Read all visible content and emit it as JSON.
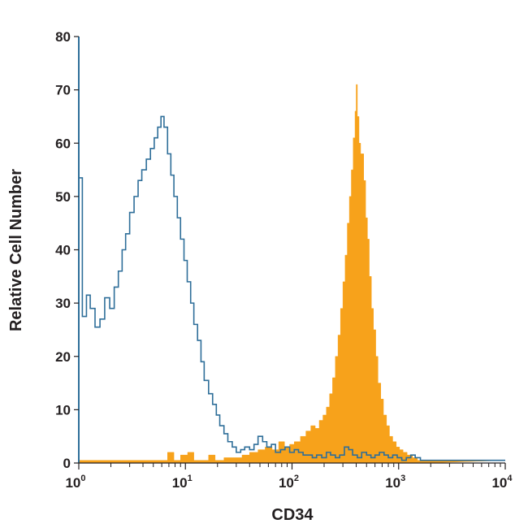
{
  "chart_data": {
    "type": "area",
    "title": "",
    "xlabel": "CD34",
    "ylabel": "Relative Cell Number",
    "xscale": "log",
    "xlim": [
      1,
      10000
    ],
    "ylim": [
      0,
      80
    ],
    "grid": false,
    "xticks": [
      {
        "value": 1,
        "base": "10",
        "exp": "0"
      },
      {
        "value": 10,
        "base": "10",
        "exp": "1"
      },
      {
        "value": 100,
        "base": "10",
        "exp": "2"
      },
      {
        "value": 1000,
        "base": "10",
        "exp": "3"
      },
      {
        "value": 10000,
        "base": "10",
        "exp": "4"
      }
    ],
    "yticks": [
      0,
      10,
      20,
      30,
      40,
      50,
      60,
      70,
      80
    ],
    "colors": {
      "isotype": "#2e6e99",
      "stained": "#f7a21b",
      "axis": "#231f20"
    },
    "series": [
      {
        "style": "step-outline",
        "color": "#2e6e99",
        "x": [
          1,
          1.08,
          1.18,
          1.28,
          1.42,
          1.58,
          1.75,
          1.95,
          2.15,
          2.35,
          2.55,
          2.75,
          3.0,
          3.3,
          3.6,
          3.9,
          4.3,
          4.7,
          5.1,
          5.5,
          5.9,
          6.3,
          6.8,
          7.3,
          7.8,
          8.4,
          9.0,
          9.7,
          10.4,
          11.2,
          12.0,
          13.0,
          14.0,
          15.0,
          16.5,
          18.0,
          19.5,
          21.0,
          23.0,
          25.0,
          27.5,
          30.0,
          33.0,
          36.0,
          40.0,
          44.0,
          48.0,
          53.0,
          58.0,
          64.0,
          70.0,
          78.0,
          86.0,
          95.0,
          105,
          115,
          127,
          140,
          155,
          170,
          190,
          210,
          230,
          255,
          280,
          310,
          340,
          370,
          410,
          450,
          500,
          550,
          600,
          660,
          730,
          800,
          880,
          970,
          1070,
          1180,
          1300,
          1430,
          1600,
          2000,
          3000,
          5000,
          10000
        ],
        "y": [
          53.5,
          27.5,
          31.5,
          29,
          25.5,
          27,
          31,
          29,
          33,
          36,
          40,
          43,
          47,
          50,
          53,
          55,
          57,
          59,
          61,
          63,
          65,
          63,
          58,
          54,
          50,
          46,
          42,
          38,
          34,
          30,
          26,
          23,
          19,
          15.5,
          13,
          11,
          9,
          7,
          5.5,
          4,
          3,
          2,
          2.5,
          3,
          2.5,
          3.5,
          5,
          4,
          3,
          3.5,
          2,
          2.5,
          3,
          2,
          2.5,
          2,
          1.5,
          1.5,
          1,
          1.5,
          1,
          2,
          1.5,
          1,
          1.5,
          3,
          2.5,
          1.5,
          1,
          2,
          1.5,
          1,
          1.5,
          2,
          1.5,
          1,
          1.5,
          1,
          0.5,
          1,
          1.5,
          1,
          0.5,
          0.5,
          0.5,
          0.5,
          0.5
        ]
      },
      {
        "style": "filled",
        "color": "#f7a21b",
        "x": [
          1.0,
          1.5,
          2.5,
          4.0,
          6.0,
          6.8,
          7.8,
          9.0,
          10.5,
          12.0,
          14.0,
          16.5,
          19.0,
          23.0,
          28.0,
          34.0,
          40.0,
          48.0,
          56.0,
          65.0,
          75.0,
          85.0,
          95.0,
          105,
          120,
          135,
          150,
          165,
          180,
          195,
          210,
          225,
          240,
          255,
          270,
          285,
          300,
          315,
          330,
          345,
          360,
          375,
          390,
          400,
          410,
          425,
          440,
          455,
          470,
          490,
          510,
          530,
          555,
          580,
          610,
          640,
          680,
          720,
          770,
          820,
          880,
          950,
          1020,
          1100,
          1200,
          1350,
          1500
        ],
        "y": [
          0.5,
          0.5,
          0.5,
          0.5,
          0.5,
          2,
          0.5,
          1.5,
          2,
          0.5,
          0.5,
          1.5,
          0.5,
          1,
          1,
          1.5,
          2,
          2.5,
          3,
          2.5,
          4,
          3,
          3.5,
          4,
          5,
          6,
          7,
          6.5,
          8,
          9,
          10.5,
          13,
          16,
          20,
          24,
          29,
          34,
          39,
          45,
          50,
          55,
          61,
          66,
          71,
          65,
          60,
          58,
          58,
          53,
          46,
          42,
          35,
          29,
          25,
          20,
          15,
          12,
          9,
          7,
          5,
          4,
          3,
          2.5,
          2,
          1.5,
          1,
          0.5
        ]
      }
    ]
  }
}
